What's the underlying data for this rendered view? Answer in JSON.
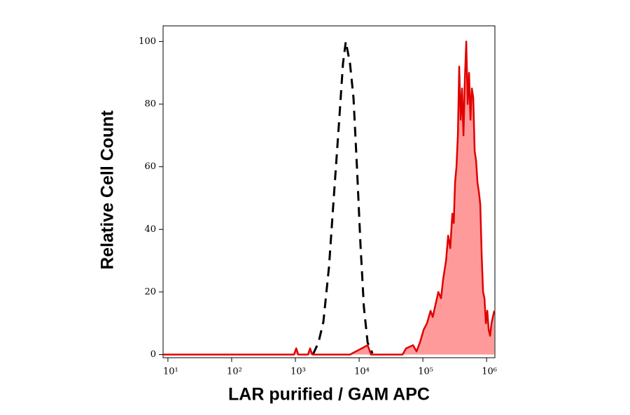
{
  "chart_data": {
    "type": "histogram-overlay",
    "xlabel": "LAR purified / GAM APC",
    "ylabel": "Relative Cell Count",
    "xscale": "log",
    "xlim": [
      8.4,
      1350000
    ],
    "ylim": [
      -1,
      105
    ],
    "xticks": [
      {
        "value": 10,
        "label": "10¹"
      },
      {
        "value": 100,
        "label": "10²"
      },
      {
        "value": 1000,
        "label": "10³"
      },
      {
        "value": 10000,
        "label": "10⁴"
      },
      {
        "value": 100000,
        "label": "10⁵"
      },
      {
        "value": 1000000,
        "label": "10⁶"
      }
    ],
    "yticks": [
      0,
      20,
      40,
      60,
      80,
      100
    ],
    "series": [
      {
        "color": "#000000",
        "style": "dashed",
        "x": [
          1880,
          2300,
          2750,
          3370,
          4020,
          4800,
          5590,
          6180,
          7190,
          8170,
          9270,
          10500,
          11900,
          13600,
          16200
        ],
        "values": [
          0,
          3.8,
          10.5,
          28,
          50.7,
          73,
          93,
          100,
          93,
          82,
          59.6,
          35,
          15,
          3.8,
          0.4
        ]
      },
      {
        "color": "#e00000",
        "style": "filled",
        "fill": "#ff9a9a",
        "x": [
          8.4,
          45.6,
          951,
          1030,
          1110,
          1580,
          1700,
          1840,
          7190,
          13600,
          15400,
          48000,
          54500,
          70200,
          79600,
          90400,
          103000,
          116000,
          132000,
          143000,
          158000,
          175000,
          193000,
          208000,
          231000,
          249000,
          269000,
          290000,
          305000,
          320000,
          337000,
          354000,
          372000,
          392000,
          412000,
          434000,
          456000,
          480000,
          505000,
          531000,
          558000,
          587000,
          618000,
          650000,
          684000,
          719000,
          757000,
          796000,
          837000,
          881000,
          927000,
          975000,
          1026000,
          1079000,
          1135000,
          1194000,
          1256000,
          1321000
        ],
        "values": [
          0,
          0,
          0,
          2,
          0,
          0,
          2,
          0,
          0,
          3,
          0,
          0,
          2,
          3,
          1,
          4,
          8,
          10,
          14,
          12,
          16,
          20,
          18,
          24,
          30,
          38,
          34,
          45,
          42,
          55,
          60,
          70,
          92,
          75,
          85,
          70,
          88,
          100,
          80,
          90,
          75,
          85,
          82,
          65,
          62,
          55,
          52,
          48,
          32,
          20,
          18,
          10,
          14,
          8,
          6,
          10,
          12,
          14
        ]
      }
    ]
  }
}
